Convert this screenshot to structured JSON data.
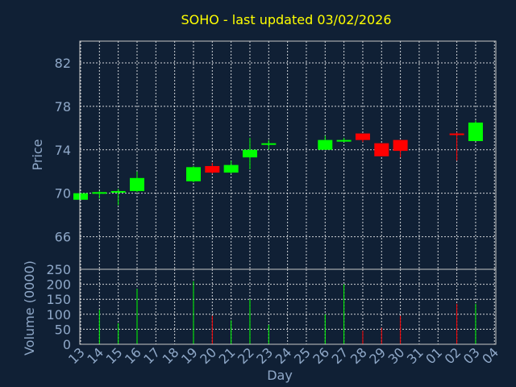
{
  "chart_data": [
    {
      "type": "candlestick",
      "title": "SOHO - last updated 03/02/2026",
      "ylabel": "Price",
      "ylim": [
        63,
        84
      ],
      "yticks": [
        66,
        70,
        74,
        78,
        82
      ],
      "categories": [
        "13",
        "14",
        "15",
        "16",
        "17",
        "18",
        "19",
        "20",
        "21",
        "22",
        "23",
        "24",
        "25",
        "26",
        "27",
        "28",
        "29",
        "30",
        "31",
        "01",
        "02",
        "03",
        "04"
      ],
      "grid": true,
      "colors": {
        "up": "#00ff00",
        "down": "#ff0000"
      },
      "candles": [
        {
          "x": "13",
          "open": 69.4,
          "high": 70.0,
          "low": 69.4,
          "close": 70.0
        },
        {
          "x": "14",
          "open": 70.0,
          "high": 70.2,
          "low": 69.5,
          "close": 70.1
        },
        {
          "x": "15",
          "open": 70.1,
          "high": 70.4,
          "low": 68.9,
          "close": 70.2
        },
        {
          "x": "16",
          "open": 70.2,
          "high": 72.0,
          "low": 70.1,
          "close": 71.4
        },
        {
          "x": "19",
          "open": 71.1,
          "high": 72.5,
          "low": 71.0,
          "close": 72.4
        },
        {
          "x": "20",
          "open": 72.5,
          "high": 72.8,
          "low": 71.8,
          "close": 71.9
        },
        {
          "x": "21",
          "open": 71.9,
          "high": 73.0,
          "low": 71.8,
          "close": 72.6
        },
        {
          "x": "22",
          "open": 73.3,
          "high": 75.1,
          "low": 72.2,
          "close": 74.0
        },
        {
          "x": "23",
          "open": 74.5,
          "high": 74.9,
          "low": 74.0,
          "close": 74.6
        },
        {
          "x": "26",
          "open": 74.0,
          "high": 75.3,
          "low": 74.0,
          "close": 74.9
        },
        {
          "x": "27",
          "open": 74.8,
          "high": 75.1,
          "low": 74.7,
          "close": 74.9
        },
        {
          "x": "28",
          "open": 75.5,
          "high": 75.5,
          "low": 74.7,
          "close": 74.9
        },
        {
          "x": "29",
          "open": 74.6,
          "high": 74.6,
          "low": 73.4,
          "close": 73.4
        },
        {
          "x": "30",
          "open": 74.9,
          "high": 74.9,
          "low": 73.3,
          "close": 73.9
        },
        {
          "x": "02",
          "open": 75.5,
          "high": 75.6,
          "low": 73.0,
          "close": 75.4
        },
        {
          "x": "03",
          "open": 74.8,
          "high": 76.7,
          "low": 74.8,
          "close": 76.5
        }
      ]
    },
    {
      "type": "bar",
      "ylabel": "Volume (0000)",
      "xlabel": "Day",
      "ylim": [
        0,
        250
      ],
      "yticks": [
        0,
        50,
        100,
        150,
        200,
        250
      ],
      "categories": [
        "13",
        "14",
        "15",
        "16",
        "17",
        "18",
        "19",
        "20",
        "21",
        "22",
        "23",
        "24",
        "25",
        "26",
        "27",
        "28",
        "29",
        "30",
        "31",
        "01",
        "02",
        "03",
        "04"
      ],
      "grid": true,
      "volumes": [
        {
          "x": "14",
          "value": 115,
          "dir": "up"
        },
        {
          "x": "15",
          "value": 70,
          "dir": "up"
        },
        {
          "x": "16",
          "value": 185,
          "dir": "up"
        },
        {
          "x": "19",
          "value": 210,
          "dir": "up"
        },
        {
          "x": "20",
          "value": 95,
          "dir": "down"
        },
        {
          "x": "21",
          "value": 80,
          "dir": "up"
        },
        {
          "x": "22",
          "value": 150,
          "dir": "up"
        },
        {
          "x": "23",
          "value": 65,
          "dir": "up"
        },
        {
          "x": "26",
          "value": 100,
          "dir": "up"
        },
        {
          "x": "27",
          "value": 200,
          "dir": "up"
        },
        {
          "x": "28",
          "value": 45,
          "dir": "down"
        },
        {
          "x": "29",
          "value": 55,
          "dir": "down"
        },
        {
          "x": "30",
          "value": 95,
          "dir": "down"
        },
        {
          "x": "02",
          "value": 135,
          "dir": "down"
        },
        {
          "x": "03",
          "value": 135,
          "dir": "up"
        }
      ]
    }
  ]
}
